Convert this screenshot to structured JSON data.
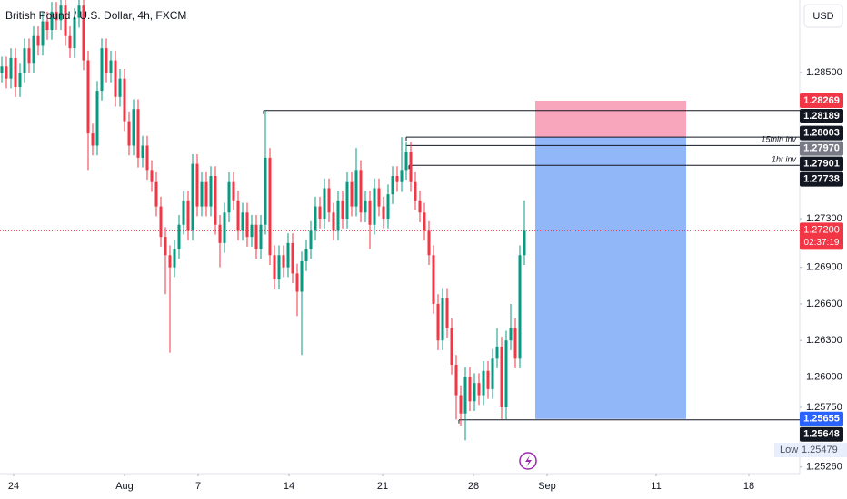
{
  "chart_data": {
    "type": "candlestick",
    "title": "British Pound / U.S. Dollar, 4h, FXCM",
    "currency": "USD",
    "up_color": "#089981",
    "down_color": "#f23645",
    "grid": false,
    "ylim": [
      1.25206,
      1.29096
    ],
    "xlim": [
      -0.4,
      175.6
    ],
    "yticks": [
      {
        "value": 1.285,
        "label": "1.28500"
      },
      {
        "value": 1.273,
        "label": "1.27300"
      },
      {
        "value": 1.269,
        "label": "1.26900"
      },
      {
        "value": 1.266,
        "label": "1.26600"
      },
      {
        "value": 1.263,
        "label": "1.26300"
      },
      {
        "value": 1.26,
        "label": "1.26000"
      },
      {
        "value": 1.2575,
        "label": "1.25750"
      },
      {
        "value": 1.2526,
        "label": "1.25260"
      }
    ],
    "xticks": [
      {
        "value": 2.6,
        "label": "24"
      },
      {
        "value": 27,
        "label": "Aug"
      },
      {
        "value": 43.2,
        "label": "7"
      },
      {
        "value": 63.2,
        "label": "14"
      },
      {
        "value": 83.8,
        "label": "21"
      },
      {
        "value": 103.8,
        "label": "28"
      },
      {
        "value": 120,
        "label": "Sep"
      },
      {
        "value": 144,
        "label": "11"
      },
      {
        "value": 164.4,
        "label": "18"
      }
    ],
    "open": [
      1.285,
      1.2855,
      1.2845,
      1.2862,
      1.2838,
      1.285,
      1.287,
      1.2858,
      1.288,
      1.2872,
      1.2892,
      1.2885,
      1.29,
      1.2893,
      1.2905,
      1.288,
      1.287,
      1.2895,
      1.2905,
      1.286,
      1.28,
      1.279,
      1.2835,
      1.287,
      1.285,
      1.286,
      1.283,
      1.2845,
      1.281,
      1.279,
      1.282,
      1.278,
      1.279,
      1.277,
      1.276,
      1.274,
      1.2715,
      1.27,
      1.269,
      1.2705,
      1.2725,
      1.2745,
      1.272,
      1.2775,
      1.274,
      1.276,
      1.274,
      1.2765,
      1.2725,
      1.271,
      1.2735,
      1.276,
      1.2745,
      1.272,
      1.2735,
      1.2715,
      1.2725,
      1.2705,
      1.2725,
      1.278,
      1.27,
      1.268,
      1.27,
      1.269,
      1.271,
      1.2685,
      1.267,
      1.2695,
      1.2705,
      1.272,
      1.274,
      1.273,
      1.2755,
      1.2735,
      1.272,
      1.2745,
      1.273,
      1.276,
      1.274,
      1.277,
      1.2735,
      1.2745,
      1.2725,
      1.2755,
      1.274,
      1.273,
      1.275,
      1.2765,
      1.276,
      1.277,
      1.2785,
      1.276,
      1.2745,
      1.2735,
      1.272,
      1.27,
      1.266,
      1.263,
      1.2665,
      1.264,
      1.261,
      1.2585,
      1.257,
      1.26,
      1.258,
      1.2595,
      1.2585,
      1.2605,
      1.259,
      1.2615,
      1.2625,
      1.2575,
      1.263,
      1.264,
      1.2615,
      1.27
    ],
    "high": [
      1.2863,
      1.2863,
      1.287,
      1.287,
      1.2858,
      1.2878,
      1.2878,
      1.2888,
      1.2888,
      1.29,
      1.29,
      1.2908,
      1.2908,
      1.2913,
      1.2913,
      1.2888,
      1.2903,
      1.2913,
      1.2913,
      1.2868,
      1.2808,
      1.2843,
      1.2878,
      1.2878,
      1.2868,
      1.2868,
      1.2853,
      1.2853,
      1.2818,
      1.2828,
      1.2828,
      1.2798,
      1.2798,
      1.2778,
      1.2768,
      1.2748,
      1.2723,
      1.2708,
      1.2713,
      1.2733,
      1.2753,
      1.2753,
      1.2783,
      1.2783,
      1.2768,
      1.2768,
      1.2773,
      1.2773,
      1.2733,
      1.2743,
      1.2768,
      1.2768,
      1.2753,
      1.2743,
      1.2743,
      1.2733,
      1.2733,
      1.2733,
      1.2819,
      1.2788,
      1.2708,
      1.2708,
      1.2708,
      1.2718,
      1.2718,
      1.2693,
      1.2703,
      1.2713,
      1.2728,
      1.2748,
      1.2748,
      1.2763,
      1.2763,
      1.2743,
      1.2753,
      1.2753,
      1.2768,
      1.2768,
      1.2788,
      1.2778,
      1.2753,
      1.2753,
      1.2763,
      1.2763,
      1.2748,
      1.2758,
      1.2773,
      1.2773,
      1.2797,
      1.2793,
      1.2793,
      1.2768,
      1.2753,
      1.2743,
      1.2728,
      1.2708,
      1.2668,
      1.2673,
      1.2673,
      1.2648,
      1.2618,
      1.2593,
      1.2608,
      1.2608,
      1.2603,
      1.2603,
      1.2613,
      1.2613,
      1.2623,
      1.264,
      1.2633,
      1.2638,
      1.266,
      1.2648,
      1.2708,
      1.2745
    ],
    "low": [
      1.2842,
      1.2837,
      1.2837,
      1.283,
      1.283,
      1.2842,
      1.285,
      1.285,
      1.2864,
      1.2864,
      1.2877,
      1.2877,
      1.2885,
      1.2885,
      1.2872,
      1.2862,
      1.2862,
      1.2887,
      1.2852,
      1.277,
      1.2782,
      1.2782,
      1.2827,
      1.2842,
      1.2842,
      1.2822,
      1.2822,
      1.2802,
      1.2782,
      1.2782,
      1.2772,
      1.2772,
      1.2762,
      1.2752,
      1.2732,
      1.2707,
      1.2668,
      1.262,
      1.2682,
      1.2697,
      1.2717,
      1.2712,
      1.2712,
      1.2732,
      1.2732,
      1.2732,
      1.2732,
      1.2717,
      1.269,
      1.2702,
      1.2727,
      1.2737,
      1.2712,
      1.2712,
      1.2707,
      1.2707,
      1.2697,
      1.2697,
      1.2717,
      1.2692,
      1.2672,
      1.2672,
      1.2682,
      1.2682,
      1.2677,
      1.265,
      1.2618,
      1.2687,
      1.2697,
      1.2712,
      1.2722,
      1.2722,
      1.2727,
      1.2712,
      1.2712,
      1.2722,
      1.2722,
      1.2732,
      1.2732,
      1.2727,
      1.2727,
      1.2705,
      1.2717,
      1.2732,
      1.2722,
      1.2722,
      1.2742,
      1.2752,
      1.2752,
      1.2762,
      1.2752,
      1.2737,
      1.2727,
      1.2712,
      1.2692,
      1.2652,
      1.2622,
      1.2622,
      1.2632,
      1.2602,
      1.2565,
      1.256,
      1.2548,
      1.2572,
      1.2572,
      1.2577,
      1.2577,
      1.2582,
      1.2582,
      1.2607,
      1.2565,
      1.2565,
      1.2622,
      1.2607,
      1.2607,
      1.2692
    ],
    "close": [
      1.2855,
      1.2845,
      1.2862,
      1.2838,
      1.285,
      1.287,
      1.2858,
      1.288,
      1.2872,
      1.2892,
      1.2885,
      1.29,
      1.2893,
      1.2905,
      1.288,
      1.287,
      1.2895,
      1.2905,
      1.286,
      1.28,
      1.279,
      1.2835,
      1.287,
      1.285,
      1.286,
      1.283,
      1.2845,
      1.281,
      1.279,
      1.282,
      1.278,
      1.279,
      1.277,
      1.276,
      1.274,
      1.2715,
      1.27,
      1.269,
      1.2705,
      1.2725,
      1.2745,
      1.272,
      1.2775,
      1.274,
      1.276,
      1.274,
      1.2765,
      1.2725,
      1.271,
      1.2735,
      1.276,
      1.2745,
      1.272,
      1.2735,
      1.2715,
      1.2725,
      1.2705,
      1.2725,
      1.278,
      1.27,
      1.268,
      1.27,
      1.269,
      1.271,
      1.2685,
      1.267,
      1.2695,
      1.2705,
      1.272,
      1.274,
      1.273,
      1.2755,
      1.2735,
      1.272,
      1.2745,
      1.273,
      1.276,
      1.274,
      1.277,
      1.2735,
      1.2745,
      1.2725,
      1.2755,
      1.274,
      1.273,
      1.275,
      1.2765,
      1.276,
      1.277,
      1.2785,
      1.276,
      1.2745,
      1.2735,
      1.272,
      1.27,
      1.266,
      1.263,
      1.2665,
      1.264,
      1.261,
      1.2585,
      1.257,
      1.26,
      1.258,
      1.2595,
      1.2585,
      1.2605,
      1.259,
      1.2615,
      1.2625,
      1.2575,
      1.263,
      1.264,
      1.2615,
      1.27,
      1.272
    ],
    "levels": [
      {
        "value": 1.28189,
        "start": 57.6
      },
      {
        "value": 1.2797,
        "start": 89
      },
      {
        "value": 1.27901,
        "start": 89,
        "label": "15min inv"
      },
      {
        "value": 1.27738,
        "start": 89.6,
        "label": "1hr inv"
      },
      {
        "value": 1.25648,
        "start": 100.6
      }
    ],
    "position": {
      "stop": 1.28269,
      "entry": 1.2797,
      "target": 1.25655,
      "start": 117.4,
      "end": 150.6
    },
    "current": {
      "value": 1.272,
      "label": "1.27200",
      "countdown": "02:37:19"
    },
    "price_tags": [
      {
        "value": 1.28269,
        "label": "1.28269",
        "color": "#f23645"
      },
      {
        "value": 1.28189,
        "label": "1.28189",
        "color": "#131722"
      },
      {
        "value": 1.28003,
        "label": "1.28003",
        "color": "#131722"
      },
      {
        "value": 1.2797,
        "label": "1.27970",
        "color": "#787b86"
      },
      {
        "value": 1.27901,
        "label": "1.27901",
        "color": "#131722"
      },
      {
        "value": 1.27738,
        "label": "1.27738",
        "color": "#131722"
      },
      {
        "value": 1.25655,
        "label": "1.25655",
        "color": "#2962ff"
      },
      {
        "value": 1.25648,
        "label": "1.25648",
        "color": "#131722"
      }
    ],
    "low_marker": {
      "label": "Low",
      "value": 1.25479
    }
  }
}
